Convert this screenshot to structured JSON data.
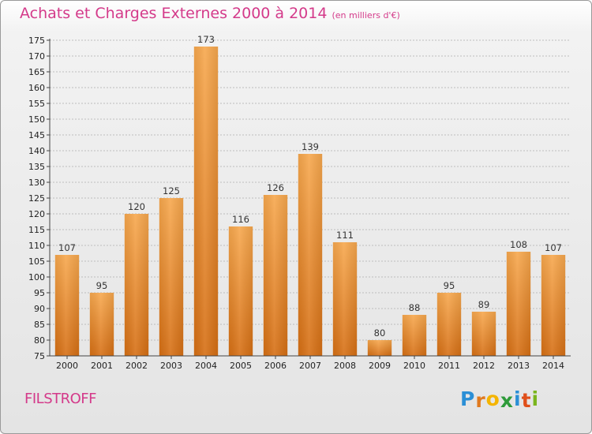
{
  "header": {
    "title": "Achats et Charges Externes 2000 à 2014",
    "subtitle": "(en milliers d'€)"
  },
  "footer": {
    "location": "FILSTROFF",
    "logo": {
      "letters": [
        "P",
        "r",
        "o",
        "x",
        "i",
        "t",
        "i"
      ],
      "colors": [
        "#2b8fd6",
        "#e07a1f",
        "#f4b400",
        "#2e9b3a",
        "#2b8fd6",
        "#e04f1a",
        "#7ab51d"
      ]
    }
  },
  "chart_data": {
    "type": "bar",
    "title": "Achats et Charges Externes 2000 à 2014",
    "subtitle": "(en milliers d'€)",
    "categories": [
      "2000",
      "2001",
      "2002",
      "2003",
      "2004",
      "2005",
      "2006",
      "2007",
      "2008",
      "2009",
      "2010",
      "2011",
      "2012",
      "2013",
      "2014"
    ],
    "values": [
      107,
      95,
      120,
      125,
      173,
      116,
      126,
      139,
      111,
      80,
      88,
      95,
      89,
      108,
      107
    ],
    "ylim": [
      75,
      175
    ],
    "yticks": [
      75,
      80,
      85,
      90,
      95,
      100,
      105,
      110,
      115,
      120,
      125,
      130,
      135,
      140,
      145,
      150,
      155,
      160,
      165,
      170,
      175
    ],
    "xlabel": "",
    "ylabel": "",
    "grid": true,
    "bar_color": "#f0902f",
    "bar_gradient_top": "#f7a84e",
    "bar_gradient_bottom": "#d66f14"
  }
}
